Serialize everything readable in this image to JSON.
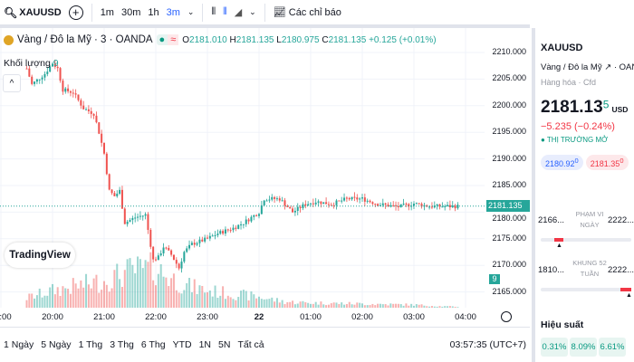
{
  "toolbar": {
    "symbol": "XAUUSD",
    "intervals": [
      "1m",
      "30m",
      "1h",
      "3m"
    ],
    "active_interval": "3m",
    "indicators": "Các chỉ báo"
  },
  "legend": {
    "title": "Vàng / Đô la Mỹ · 3 · OANDA",
    "o_label": "O",
    "o": "2181.010",
    "h_label": "H",
    "h": "2181.135",
    "l_label": "L",
    "l": "2180.975",
    "c_label": "C",
    "c": "2181.135",
    "change": "+0.125 (+0.01%)",
    "volume_label": "Khối lượng",
    "volume_value": "9"
  },
  "logo": "TradingView",
  "chart_data": {
    "type": "candlestick",
    "price_ticks": [
      "2210.000",
      "2205.000",
      "2200.000",
      "2195.000",
      "2190.000",
      "2185.000",
      "2180.000",
      "2175.000",
      "2170.000",
      "2165.000"
    ],
    "price_range": [
      2163,
      2213
    ],
    "current_price": "2181.135",
    "volume_badge": "9",
    "time_ticks": [
      ":00",
      "20:00",
      "21:00",
      "22:00",
      "23:00",
      "22",
      "01:00",
      "02:00",
      "03:00",
      "04:00"
    ],
    "price_path_hours_vs_price": [
      [
        19.5,
        2207
      ],
      [
        19.6,
        2204
      ],
      [
        19.85,
        2206
      ],
      [
        20,
        2208
      ],
      [
        20.1,
        2207
      ],
      [
        20.2,
        2203
      ],
      [
        20.4,
        2202.5
      ],
      [
        20.6,
        2199.5
      ],
      [
        20.8,
        2198.5
      ],
      [
        20.9,
        2195
      ],
      [
        21,
        2191
      ],
      [
        21.1,
        2184
      ],
      [
        21.2,
        2183
      ],
      [
        21.3,
        2184
      ],
      [
        21.4,
        2178
      ],
      [
        21.6,
        2179
      ],
      [
        21.8,
        2179.5
      ],
      [
        21.95,
        2171
      ],
      [
        22.05,
        2171.5
      ],
      [
        22.15,
        2173.5
      ],
      [
        22.3,
        2172
      ],
      [
        22.45,
        2169.5
      ],
      [
        22.55,
        2172.5
      ],
      [
        22.7,
        2174
      ],
      [
        23,
        2175
      ],
      [
        23.2,
        2176
      ],
      [
        23.5,
        2177
      ],
      [
        23.7,
        2178
      ],
      [
        24,
        2180
      ],
      [
        24.1,
        2182.5
      ],
      [
        24.4,
        2182.5
      ],
      [
        24.65,
        2180
      ],
      [
        24.9,
        2181.5
      ],
      [
        25.1,
        2182
      ],
      [
        25.4,
        2181.5
      ],
      [
        25.7,
        2182.5
      ],
      [
        26,
        2182.5
      ],
      [
        26.3,
        2181.5
      ],
      [
        26.7,
        2181
      ],
      [
        27,
        2181.6
      ],
      [
        27.3,
        2181.1
      ],
      [
        27.85,
        2181.1
      ]
    ],
    "volume_profile_hours_vs_volume": [
      [
        19.5,
        20
      ],
      [
        20,
        35
      ],
      [
        20.5,
        45
      ],
      [
        21,
        55
      ],
      [
        21.5,
        75
      ],
      [
        22,
        80
      ],
      [
        22.3,
        60
      ],
      [
        22.6,
        45
      ],
      [
        23,
        35
      ],
      [
        23.5,
        28
      ],
      [
        24,
        22
      ],
      [
        24.5,
        12
      ],
      [
        25,
        10
      ],
      [
        25.5,
        9
      ],
      [
        26,
        8
      ],
      [
        26.5,
        7
      ],
      [
        27,
        6
      ],
      [
        27.5,
        3
      ],
      [
        27.85,
        2
      ]
    ]
  },
  "bottombar": {
    "ranges": [
      "1 Ngày",
      "5 Ngày",
      "1 Thg",
      "3 Thg",
      "6 Thg",
      "YTD",
      "1N",
      "5N",
      "Tất cả"
    ],
    "clock": "03:57:35 (UTC+7)"
  },
  "panel": {
    "symbol": "XAUUSD",
    "name": "Vàng / Đô la Mỹ",
    "exchange": "OANDA",
    "category": "Hàng hóa",
    "type": "Cfd",
    "price_main": "2181.13",
    "price_sup": "5",
    "currency": "USD",
    "change": "−5.235 (−0.24%)",
    "market_status": "THỊ TRƯỜNG MỞ",
    "bid": "2180.92",
    "bid_sup": "0",
    "ask": "2181.35",
    "ask_sup": "0",
    "day_range": {
      "low": "2166...",
      "label1": "PHẠM VI",
      "label2": "NGÀY",
      "high": "2222...",
      "position": 0.2
    },
    "week52": {
      "low": "1810...",
      "label1": "KHUNG 52",
      "label2": "TUẦN",
      "high": "2222...",
      "position": 0.97
    },
    "performance_title": "Hiệu suất",
    "performance": [
      "0.31%",
      "8.09%",
      "6.61%"
    ],
    "colors": {
      "up": "#26a69a",
      "down": "#ef5350",
      "accent": "#2962ff"
    }
  }
}
